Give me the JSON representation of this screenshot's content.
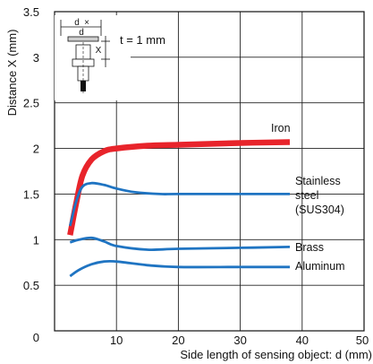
{
  "chart_data": {
    "type": "line",
    "xlabel": "Side length of sensing object: d (mm)",
    "ylabel": "Distance X (mm)",
    "xlim": [
      0,
      50
    ],
    "ylim": [
      0,
      3.5
    ],
    "xticks": [
      "10",
      "20",
      "30",
      "40",
      "50"
    ],
    "yticks": [
      "0",
      "0.5",
      "1",
      "1.5",
      "2",
      "2.5",
      "3",
      "3.5"
    ],
    "x_origin_label": "0",
    "grid": true,
    "annotation": {
      "text": "t = 1 mm",
      "diagram_labels": [
        "d",
        "d",
        "X"
      ]
    },
    "series": [
      {
        "name": "Iron",
        "label_lines": [
          "Iron"
        ],
        "color": "#e8242b",
        "x": [
          2.5,
          3.5,
          4.5,
          6,
          8,
          10,
          15,
          20,
          30,
          38
        ],
        "y": [
          1.05,
          1.4,
          1.7,
          1.88,
          1.97,
          2.0,
          2.03,
          2.04,
          2.06,
          2.07
        ]
      },
      {
        "name": "Stainless steel (SUS304)",
        "label_lines": [
          "Stainless",
          "steel",
          "(SUS304)"
        ],
        "color": "#1f74c2",
        "x": [
          2.5,
          3.5,
          4.5,
          6,
          8,
          10,
          13,
          17,
          20,
          30,
          38
        ],
        "y": [
          1.15,
          1.42,
          1.58,
          1.62,
          1.6,
          1.56,
          1.52,
          1.5,
          1.5,
          1.5,
          1.5
        ]
      },
      {
        "name": "Brass",
        "label_lines": [
          "Brass"
        ],
        "color": "#1f74c2",
        "x": [
          2.5,
          4,
          6,
          8,
          10,
          15,
          20,
          30,
          38
        ],
        "y": [
          0.97,
          1.0,
          1.02,
          0.98,
          0.93,
          0.89,
          0.9,
          0.91,
          0.92
        ]
      },
      {
        "name": "Aluminum",
        "label_lines": [
          "Aluminum"
        ],
        "color": "#1f74c2",
        "x": [
          2.5,
          4,
          6,
          8,
          10,
          15,
          20,
          30,
          38
        ],
        "y": [
          0.6,
          0.67,
          0.73,
          0.76,
          0.76,
          0.72,
          0.7,
          0.7,
          0.7
        ]
      }
    ]
  }
}
